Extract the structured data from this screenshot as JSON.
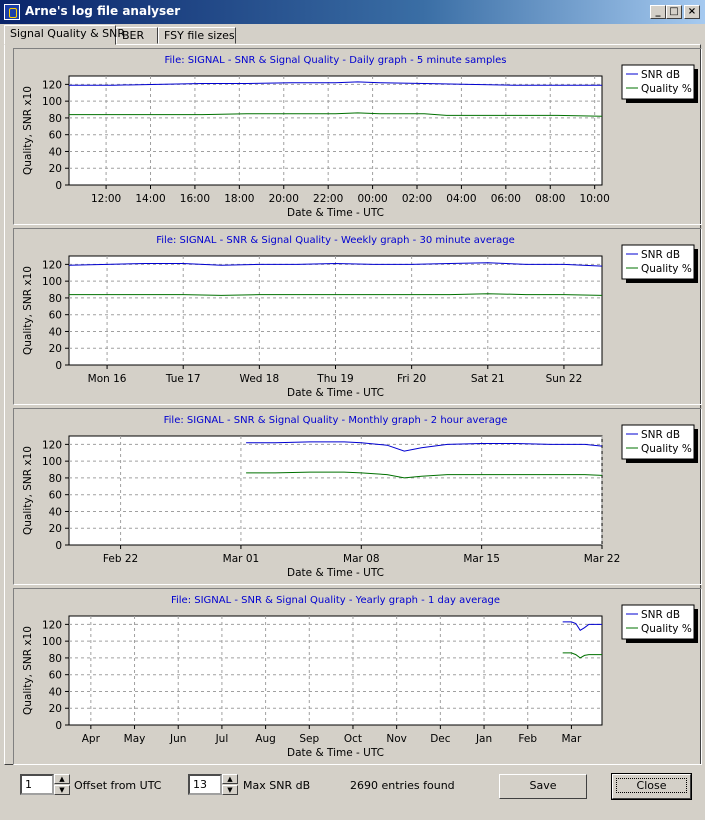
{
  "window": {
    "title": "Arne's log file analyser"
  },
  "tabs": [
    {
      "label": "Signal Quality & SNR",
      "active": true
    },
    {
      "label": "BER",
      "active": false
    },
    {
      "label": "FSY file sizes",
      "active": false
    }
  ],
  "colors": {
    "snr": "#0000d0",
    "quality": "#007000",
    "grid": "#a0a0a0",
    "title": "#0000d0"
  },
  "chart_data": [
    {
      "type": "line",
      "title": "File: SIGNAL - SNR & Signal Quality - Daily graph - 5 minute samples",
      "xlabel": "Date & Time - UTC",
      "ylabel": "Quality, SNR x10",
      "ylim": [
        0,
        130
      ],
      "yticks": [
        0,
        20,
        40,
        60,
        80,
        100,
        120
      ],
      "xlim": [
        0,
        24
      ],
      "xticks": [
        {
          "v": 1.67,
          "label": "12:00"
        },
        {
          "v": 3.67,
          "label": "14:00"
        },
        {
          "v": 5.67,
          "label": "16:00"
        },
        {
          "v": 7.67,
          "label": "18:00"
        },
        {
          "v": 9.67,
          "label": "20:00"
        },
        {
          "v": 11.67,
          "label": "22:00"
        },
        {
          "v": 13.67,
          "label": "00:00"
        },
        {
          "v": 15.67,
          "label": "02:00"
        },
        {
          "v": 17.67,
          "label": "04:00"
        },
        {
          "v": 19.67,
          "label": "06:00"
        },
        {
          "v": 21.67,
          "label": "08:00"
        },
        {
          "v": 23.67,
          "label": "10:00"
        }
      ],
      "legend": "top-right",
      "grid": true,
      "series": [
        {
          "name": "SNR dB",
          "x": [
            0,
            2,
            4,
            6,
            8,
            10,
            12,
            13,
            14,
            16,
            18,
            20,
            22,
            24
          ],
          "values": [
            119,
            119,
            120,
            121,
            121,
            122,
            122,
            123,
            122,
            121,
            120,
            119,
            119,
            119
          ]
        },
        {
          "name": "Quality %",
          "x": [
            0,
            2,
            4,
            6,
            8,
            10,
            12,
            13,
            14,
            16,
            17,
            18,
            20,
            22,
            24
          ],
          "values": [
            84,
            84,
            84,
            84,
            85,
            85,
            85,
            86,
            85,
            85,
            83,
            83,
            83,
            83,
            82
          ]
        }
      ]
    },
    {
      "type": "line",
      "title": "File: SIGNAL - SNR & Signal Quality - Weekly graph - 30 minute average",
      "xlabel": "Date & Time - UTC",
      "ylabel": "Quality, SNR x10",
      "ylim": [
        0,
        130
      ],
      "yticks": [
        0,
        20,
        40,
        60,
        80,
        100,
        120
      ],
      "xlim": [
        0,
        7
      ],
      "xticks": [
        {
          "v": 0.5,
          "label": "Mon 16"
        },
        {
          "v": 1.5,
          "label": "Tue 17"
        },
        {
          "v": 2.5,
          "label": "Wed 18"
        },
        {
          "v": 3.5,
          "label": "Thu 19"
        },
        {
          "v": 4.5,
          "label": "Fri 20"
        },
        {
          "v": 5.5,
          "label": "Sat 21"
        },
        {
          "v": 6.5,
          "label": "Sun 22"
        }
      ],
      "legend": "top-right",
      "grid": true,
      "series": [
        {
          "name": "SNR dB",
          "x": [
            0,
            0.5,
            1,
            1.5,
            2,
            2.5,
            3,
            3.5,
            4,
            4.5,
            5,
            5.5,
            6,
            6.5,
            7
          ],
          "values": [
            119,
            120,
            121,
            121,
            119,
            120,
            120,
            121,
            120,
            120,
            121,
            122,
            120,
            120,
            118
          ]
        },
        {
          "name": "Quality %",
          "x": [
            0,
            0.5,
            1,
            1.5,
            2,
            2.5,
            3,
            3.5,
            4,
            4.5,
            5,
            5.5,
            6,
            6.5,
            7
          ],
          "values": [
            84,
            84,
            84,
            84,
            83,
            84,
            84,
            84,
            84,
            84,
            84,
            85,
            84,
            84,
            83
          ]
        }
      ]
    },
    {
      "type": "line",
      "title": "File: SIGNAL - SNR & Signal Quality - Monthly graph - 2 hour average",
      "xlabel": "Date & Time - UTC",
      "ylabel": "Quality, SNR x10",
      "ylim": [
        0,
        130
      ],
      "yticks": [
        0,
        20,
        40,
        60,
        80,
        100,
        120
      ],
      "xlim": [
        0,
        31
      ],
      "xticks": [
        {
          "v": 3,
          "label": "Feb 22"
        },
        {
          "v": 10,
          "label": "Mar 01"
        },
        {
          "v": 17,
          "label": "Mar 08"
        },
        {
          "v": 24,
          "label": "Mar 15"
        },
        {
          "v": 31,
          "label": "Mar 22"
        }
      ],
      "legend": "top-right",
      "grid": true,
      "series": [
        {
          "name": "SNR dB",
          "x": [
            10.3,
            12,
            14,
            16,
            17,
            18.5,
            19.5,
            20.5,
            22,
            24,
            26,
            28,
            30,
            31
          ],
          "values": [
            122,
            122,
            123,
            123,
            122,
            119,
            112,
            116,
            120,
            121,
            121,
            120,
            120,
            118
          ]
        },
        {
          "name": "Quality %",
          "x": [
            10.3,
            12,
            14,
            16,
            17,
            18.5,
            19.5,
            20.5,
            22,
            24,
            26,
            28,
            30,
            31
          ],
          "values": [
            86,
            86,
            87,
            87,
            86,
            84,
            80,
            82,
            84,
            84,
            84,
            84,
            84,
            83
          ]
        }
      ]
    },
    {
      "type": "line",
      "title": "File: SIGNAL - SNR & Signal Quality - Yearly graph - 1 day average",
      "xlabel": "Date & Time - UTC",
      "ylabel": "Quality, SNR x10",
      "ylim": [
        0,
        130
      ],
      "yticks": [
        0,
        20,
        40,
        60,
        80,
        100,
        120
      ],
      "xlim": [
        0,
        12.2
      ],
      "xticks": [
        {
          "v": 0.5,
          "label": "Apr"
        },
        {
          "v": 1.5,
          "label": "May"
        },
        {
          "v": 2.5,
          "label": "Jun"
        },
        {
          "v": 3.5,
          "label": "Jul"
        },
        {
          "v": 4.5,
          "label": "Aug"
        },
        {
          "v": 5.5,
          "label": "Sep"
        },
        {
          "v": 6.5,
          "label": "Oct"
        },
        {
          "v": 7.5,
          "label": "Nov"
        },
        {
          "v": 8.5,
          "label": "Dec"
        },
        {
          "v": 9.5,
          "label": "Jan"
        },
        {
          "v": 10.5,
          "label": "Feb"
        },
        {
          "v": 11.5,
          "label": "Mar"
        }
      ],
      "legend": "top-right",
      "grid": true,
      "series": [
        {
          "name": "SNR dB",
          "x": [
            11.3,
            11.5,
            11.6,
            11.7,
            11.8,
            11.9,
            12,
            12.2
          ],
          "values": [
            123,
            123,
            121,
            113,
            116,
            120,
            120,
            120
          ]
        },
        {
          "name": "Quality %",
          "x": [
            11.3,
            11.5,
            11.6,
            11.7,
            11.8,
            11.9,
            12,
            12.2
          ],
          "values": [
            86,
            86,
            84,
            80,
            83,
            84,
            84,
            84
          ]
        }
      ]
    }
  ],
  "controls": {
    "offset_value": "1",
    "offset_label": "Offset from UTC",
    "maxsnr_value": "13",
    "maxsnr_label": "Max SNR dB",
    "entries": "2690 entries found",
    "save_label": "Save",
    "close_label": "Close"
  }
}
